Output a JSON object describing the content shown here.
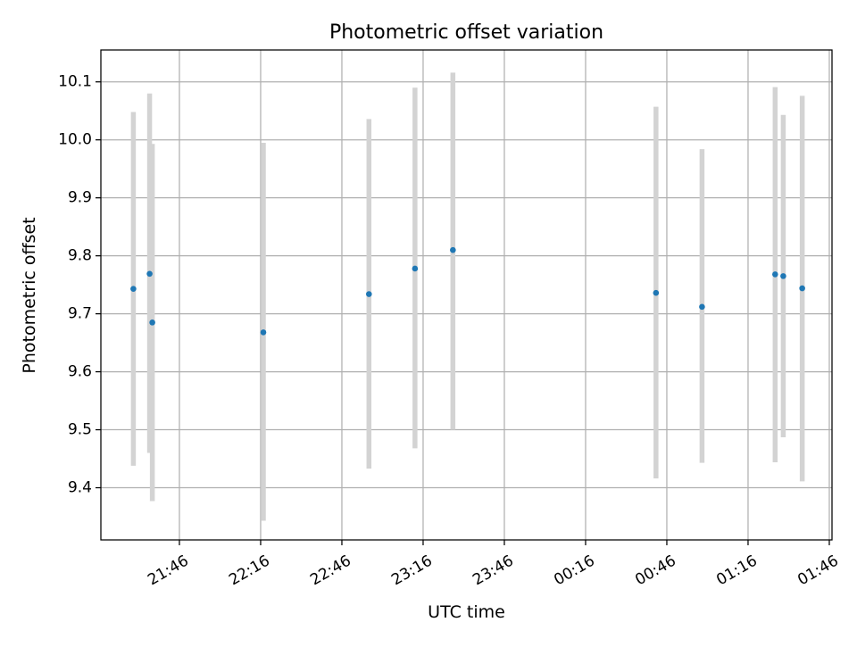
{
  "chart_data": {
    "type": "scatter",
    "title": "Photometric offset variation",
    "xlabel": "UTC time",
    "ylabel": "Photometric offset",
    "grid": true,
    "xticks": [
      "21:46",
      "22:16",
      "22:46",
      "23:16",
      "23:46",
      "00:16",
      "00:46",
      "01:16",
      "01:46"
    ],
    "yticks": [
      "9.4",
      "9.5",
      "9.6",
      "9.7",
      "9.8",
      "9.9",
      "10.0",
      "10.1"
    ],
    "xlim": [
      "21:17",
      "01:47"
    ],
    "ylim": [
      9.31,
      10.155
    ],
    "colors": {
      "points": "#1f77b4",
      "errorbars": "#d3d3d3",
      "grid": "#b0b0b0"
    },
    "points": [
      {
        "x": "21:29",
        "y": 9.743,
        "yerr_low": 9.438,
        "yerr_high": 10.048
      },
      {
        "x": "21:35",
        "y": 9.769,
        "yerr_low": 9.46,
        "yerr_high": 10.08
      },
      {
        "x": "21:36",
        "y": 9.685,
        "yerr_low": 9.377,
        "yerr_high": 9.993
      },
      {
        "x": "22:17",
        "y": 9.668,
        "yerr_low": 9.343,
        "yerr_high": 9.995
      },
      {
        "x": "22:56",
        "y": 9.734,
        "yerr_low": 9.433,
        "yerr_high": 10.036
      },
      {
        "x": "23:13",
        "y": 9.778,
        "yerr_low": 9.468,
        "yerr_high": 10.09
      },
      {
        "x": "23:27",
        "y": 9.81,
        "yerr_low": 9.5,
        "yerr_high": 10.116
      },
      {
        "x": "00:42",
        "y": 9.736,
        "yerr_low": 9.416,
        "yerr_high": 10.057
      },
      {
        "x": "00:59",
        "y": 9.712,
        "yerr_low": 9.443,
        "yerr_high": 9.984
      },
      {
        "x": "01:26",
        "y": 9.768,
        "yerr_low": 9.444,
        "yerr_high": 10.091
      },
      {
        "x": "01:29",
        "y": 9.765,
        "yerr_low": 9.487,
        "yerr_high": 10.043
      },
      {
        "x": "01:36",
        "y": 9.744,
        "yerr_low": 9.411,
        "yerr_high": 10.076
      }
    ]
  }
}
